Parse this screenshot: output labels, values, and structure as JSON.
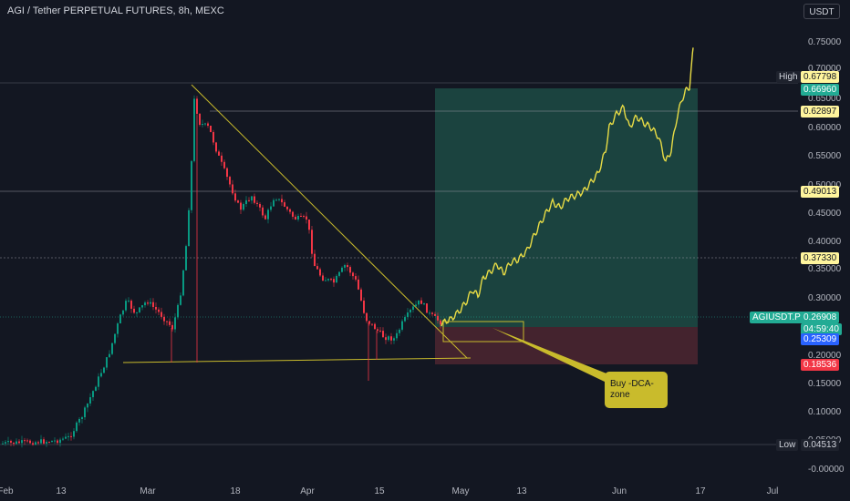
{
  "header": {
    "title": "AGI / Tether PERPETUAL FUTURES, 8h, MEXC",
    "currency_button": "USDT"
  },
  "price_axis": {
    "ticks": [
      "0.75000",
      "0.70000",
      "0.65000",
      "0.60000",
      "0.55000",
      "0.50000",
      "0.45000",
      "0.40000",
      "0.35000",
      "0.30000",
      "0.20000",
      "0.15000",
      "0.10000",
      "0.05000",
      "-0.00000"
    ]
  },
  "time_axis": {
    "ticks": [
      "Feb",
      "13",
      "Mar",
      "18",
      "Apr",
      "15",
      "May",
      "13",
      "Jun",
      "17",
      "Jul"
    ]
  },
  "price_tags": {
    "high_label": "High",
    "high_value": "0.67798",
    "target_value": "0.66960",
    "level_1": "0.62897",
    "level_2": "0.49013",
    "level_3": "0.37330",
    "symbol": "AGIUSDT.P",
    "last_price": "0.26908",
    "countdown": "04:59:40",
    "entry_value": "0.25309",
    "stop_value": "0.18536",
    "low_label": "Low",
    "low_value": "0.04513"
  },
  "annotation": {
    "callout_text": "Buy -DCA-\nzone"
  },
  "colors": {
    "background": "#131722",
    "up_candle": "#089981",
    "down_candle": "#f23645",
    "projection": "#e8dc45",
    "profit_zone": "#1d4b44",
    "loss_zone": "#4a2530",
    "symbol_tag": "#22ab94",
    "entry_tag": "#2962ff",
    "stop_tag": "#f23645",
    "level_tag": "#fff59d"
  }
}
